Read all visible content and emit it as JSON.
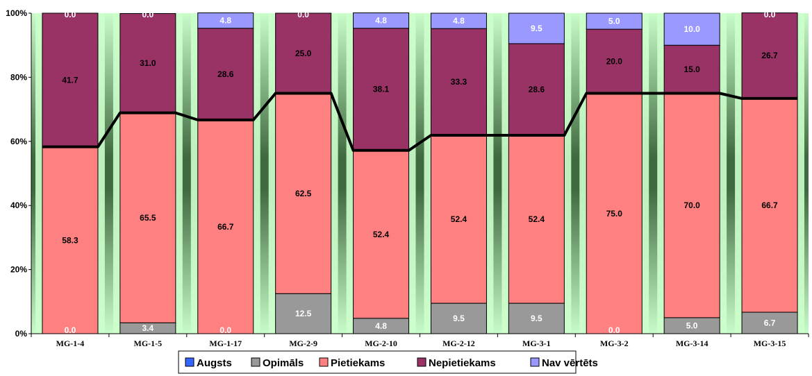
{
  "chart_data": {
    "type": "bar",
    "stacked": true,
    "percent_stacked": true,
    "categories": [
      "MG-1-4",
      "MG-1-5",
      "MG-1-17",
      "MG-2-9",
      "MG-2-10",
      "MG-2-12",
      "MG-3-1",
      "MG-3-2",
      "MG-3-14",
      "MG-3-15"
    ],
    "series": [
      {
        "name": "Augsts",
        "color": "#3366ff",
        "values": [
          0,
          0,
          0,
          0,
          0,
          0,
          0,
          0,
          0,
          0
        ],
        "labels": false
      },
      {
        "name": "Opimāls",
        "color": "#999999",
        "values": [
          0.0,
          3.4,
          0.0,
          12.5,
          4.8,
          9.5,
          9.5,
          0.0,
          5.0,
          6.7
        ]
      },
      {
        "name": "Pietiekams",
        "color": "#ff8080",
        "values": [
          58.3,
          65.5,
          66.7,
          62.5,
          52.4,
          52.4,
          52.4,
          75.0,
          70.0,
          66.7
        ]
      },
      {
        "name": "Nepietiekams",
        "color": "#993366",
        "values": [
          41.7,
          31.0,
          28.6,
          25.0,
          38.1,
          33.3,
          28.6,
          20.0,
          15.0,
          26.7
        ]
      },
      {
        "name": "Nav vērtēts",
        "color": "#9999ff",
        "values": [
          0.0,
          0.0,
          4.8,
          0.0,
          4.8,
          4.8,
          9.5,
          5.0,
          10.0,
          0.0
        ]
      }
    ],
    "unit_label": "%",
    "ylim": [
      0,
      100
    ],
    "yticks": [
      "0%",
      "20%",
      "40%",
      "60%",
      "80%",
      "100%"
    ],
    "grid": false,
    "legend_position": "bottom",
    "background_gradient": [
      "#ccffcc",
      "#336633"
    ],
    "overlay_line_color": "#000000"
  }
}
